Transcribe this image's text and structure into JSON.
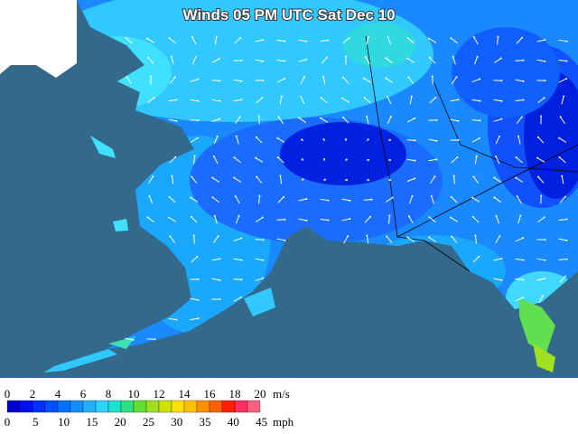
{
  "title": "Winds 05 PM UTC Sat Dec 10",
  "legend": {
    "ms_ticks": [
      0,
      2,
      4,
      6,
      8,
      10,
      12,
      14,
      16,
      18,
      20
    ],
    "ms_unit": "m/s",
    "mph_ticks": [
      0,
      5,
      10,
      15,
      20,
      25,
      30,
      35,
      40,
      45
    ],
    "mph_unit": "mph",
    "colors": [
      "#0000d0",
      "#0010f0",
      "#0030ff",
      "#0050ff",
      "#0070ff",
      "#1090ff",
      "#20b0ff",
      "#30d0ff",
      "#20e0d0",
      "#30e080",
      "#60e030",
      "#a0e020",
      "#d0e000",
      "#ffe000",
      "#ffc000",
      "#ff9000",
      "#ff6000",
      "#ff2000",
      "#ff3060",
      "#ff6080"
    ]
  }
}
